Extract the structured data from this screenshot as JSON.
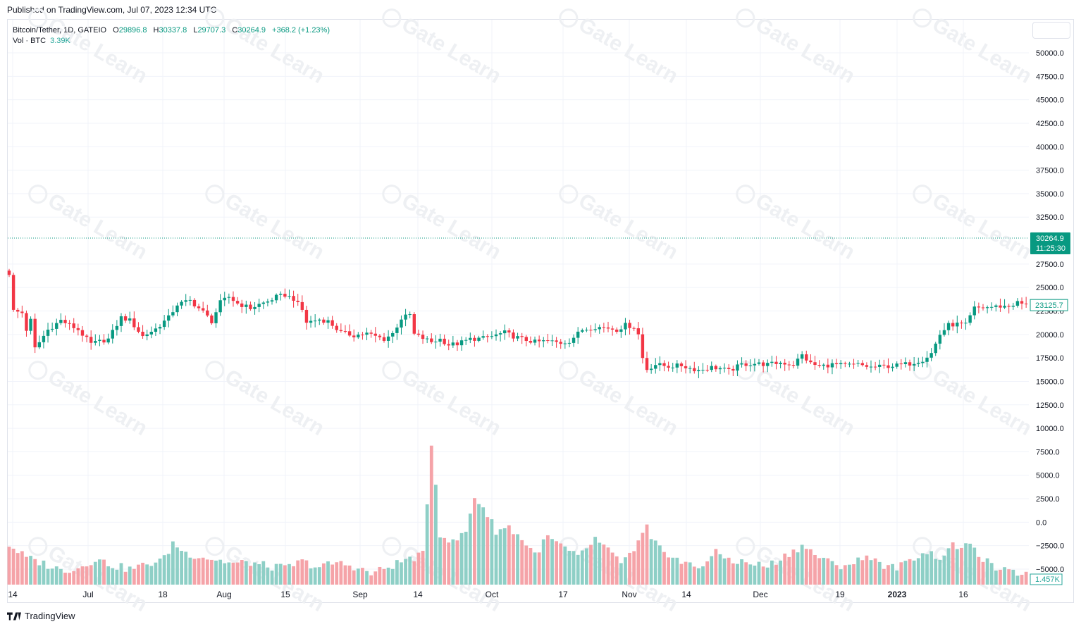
{
  "published": "Published on TradingView.com, Jul 07, 2023 12:34 UTC",
  "legend": {
    "symbol": "Bitcoin/Tether, 1D, GATEIO",
    "open_label": "O",
    "open": "29896.8",
    "high_label": "H",
    "high": "30337.8",
    "low_label": "L",
    "low": "29707.3",
    "close_label": "C",
    "close": "30264.9",
    "change": "+368.2 (+1.23%)"
  },
  "volume_legend": {
    "label": "Vol · BTC",
    "value": "3.39K"
  },
  "footer": {
    "brand": "TradingView"
  },
  "watermark": "Gate Learn",
  "colors": {
    "up": "#089981",
    "down": "#f23645",
    "vol_up": "#8ecfc6",
    "vol_down": "#f5a3a8",
    "grid": "#f0f3fa",
    "current_price": "#089981"
  },
  "chart_data": {
    "type": "candlestick",
    "y_axis_ticks": [
      "50000.0",
      "47500.0",
      "45000.0",
      "42500.0",
      "40000.0",
      "37500.0",
      "35000.0",
      "32500.0",
      "27500.0",
      "25000.0",
      "22500.0",
      "20000.0",
      "17500.0",
      "15000.0",
      "12500.0",
      "10000.0",
      "7500.0",
      "5000.0",
      "2500.0",
      "0.0",
      "−2500.0",
      "−5000.0"
    ],
    "x_axis_labels": [
      "14",
      "Jul",
      "18",
      "Aug",
      "15",
      "Sep",
      "14",
      "Oct",
      "17",
      "Nov",
      "14",
      "Dec",
      "19",
      "2023",
      "16"
    ],
    "current_price_label": "30264.9",
    "countdown_label": "11:25:30",
    "last_close_label": "23125.7",
    "volume_label": "1.457K",
    "ylim": [
      -5000,
      52000
    ],
    "close_path": [
      [
        0,
        26500
      ],
      [
        1,
        22500
      ],
      [
        3,
        22300
      ],
      [
        4,
        20500
      ],
      [
        5,
        21500
      ],
      [
        6,
        18500
      ],
      [
        9,
        20500
      ],
      [
        12,
        21500
      ],
      [
        16,
        20500
      ],
      [
        19,
        19000
      ],
      [
        23,
        19500
      ],
      [
        26,
        21800
      ],
      [
        28,
        21500
      ],
      [
        31,
        19800
      ],
      [
        34,
        20600
      ],
      [
        37,
        21800
      ],
      [
        39,
        23200
      ],
      [
        42,
        23600
      ],
      [
        45,
        22400
      ],
      [
        47,
        21400
      ],
      [
        49,
        23400
      ],
      [
        51,
        24000
      ],
      [
        53,
        23300
      ],
      [
        56,
        22800
      ],
      [
        58,
        23200
      ],
      [
        60,
        23500
      ],
      [
        62,
        24000
      ],
      [
        64,
        24200
      ],
      [
        66,
        23800
      ],
      [
        68,
        22600
      ],
      [
        69,
        21300
      ],
      [
        72,
        21600
      ],
      [
        74,
        21400
      ],
      [
        77,
        20200
      ],
      [
        80,
        19900
      ],
      [
        83,
        20100
      ],
      [
        85,
        19800
      ],
      [
        87,
        19500
      ],
      [
        89,
        20100
      ],
      [
        91,
        21700
      ],
      [
        93,
        22100
      ],
      [
        94,
        20000
      ],
      [
        96,
        19600
      ],
      [
        98,
        19200
      ],
      [
        100,
        19500
      ],
      [
        102,
        18900
      ],
      [
        104,
        19000
      ],
      [
        107,
        19500
      ],
      [
        110,
        19600
      ],
      [
        112,
        19800
      ],
      [
        115,
        20200
      ],
      [
        117,
        19800
      ],
      [
        120,
        19400
      ],
      [
        122,
        19200
      ],
      [
        125,
        19300
      ],
      [
        128,
        19100
      ],
      [
        130,
        19300
      ],
      [
        133,
        20500
      ],
      [
        136,
        20800
      ],
      [
        139,
        20700
      ],
      [
        141,
        20500
      ],
      [
        143,
        21000
      ],
      [
        145,
        20800
      ],
      [
        146,
        20000
      ],
      [
        147,
        17500
      ],
      [
        148,
        16300
      ],
      [
        150,
        16800
      ],
      [
        153,
        16600
      ],
      [
        156,
        16700
      ],
      [
        158,
        16400
      ],
      [
        160,
        16200
      ],
      [
        163,
        16500
      ],
      [
        165,
        16400
      ],
      [
        167,
        16100
      ],
      [
        170,
        16800
      ],
      [
        173,
        16900
      ],
      [
        176,
        16800
      ],
      [
        179,
        17000
      ],
      [
        182,
        16800
      ],
      [
        184,
        17800
      ],
      [
        186,
        16900
      ],
      [
        188,
        16600
      ],
      [
        191,
        16800
      ],
      [
        194,
        16700
      ],
      [
        197,
        16800
      ],
      [
        200,
        16500
      ],
      [
        203,
        16600
      ],
      [
        206,
        16700
      ],
      [
        209,
        16900
      ],
      [
        212,
        17300
      ],
      [
        214,
        18000
      ],
      [
        216,
        20000
      ],
      [
        218,
        21000
      ],
      [
        220,
        21100
      ],
      [
        222,
        21000
      ],
      [
        224,
        22800
      ],
      [
        227,
        22900
      ],
      [
        230,
        23000
      ],
      [
        232,
        23000
      ],
      [
        234,
        23400
      ],
      [
        236,
        23126
      ]
    ],
    "volume_path": [
      [
        0,
        -2400
      ],
      [
        4,
        -3800
      ],
      [
        8,
        -4400
      ],
      [
        12,
        -5100
      ],
      [
        16,
        -4900
      ],
      [
        20,
        -3900
      ],
      [
        24,
        -4600
      ],
      [
        28,
        -5000
      ],
      [
        32,
        -4500
      ],
      [
        36,
        -3900
      ],
      [
        38,
        -2200
      ],
      [
        41,
        -3300
      ],
      [
        44,
        -3600
      ],
      [
        48,
        -4000
      ],
      [
        52,
        -4400
      ],
      [
        56,
        -4300
      ],
      [
        60,
        -4700
      ],
      [
        64,
        -4900
      ],
      [
        68,
        -4200
      ],
      [
        72,
        -4800
      ],
      [
        76,
        -4300
      ],
      [
        80,
        -4700
      ],
      [
        84,
        -5500
      ],
      [
        88,
        -4800
      ],
      [
        92,
        -4000
      ],
      [
        96,
        -3500
      ],
      [
        97,
        1800
      ],
      [
        98,
        8500
      ],
      [
        99,
        4000
      ],
      [
        100,
        -1200
      ],
      [
        103,
        -2200
      ],
      [
        106,
        -1000
      ],
      [
        108,
        2700
      ],
      [
        110,
        1600
      ],
      [
        113,
        -900
      ],
      [
        116,
        -500
      ],
      [
        119,
        -1800
      ],
      [
        122,
        -3400
      ],
      [
        125,
        -1600
      ],
      [
        128,
        -2500
      ],
      [
        132,
        -3800
      ],
      [
        136,
        -1800
      ],
      [
        139,
        -3100
      ],
      [
        142,
        -4200
      ],
      [
        145,
        -3200
      ],
      [
        148,
        -500
      ],
      [
        149,
        -2100
      ],
      [
        152,
        -3000
      ],
      [
        156,
        -4300
      ],
      [
        160,
        -4800
      ],
      [
        164,
        -3300
      ],
      [
        168,
        -4100
      ],
      [
        172,
        -4400
      ],
      [
        176,
        -4700
      ],
      [
        180,
        -3600
      ],
      [
        184,
        -2500
      ],
      [
        188,
        -3700
      ],
      [
        192,
        -4700
      ],
      [
        196,
        -4300
      ],
      [
        200,
        -3600
      ],
      [
        204,
        -4900
      ],
      [
        208,
        -4500
      ],
      [
        212,
        -3100
      ],
      [
        216,
        -3700
      ],
      [
        219,
        -2600
      ],
      [
        222,
        -2400
      ],
      [
        225,
        -3400
      ],
      [
        228,
        -4700
      ],
      [
        232,
        -5400
      ],
      [
        236,
        -5400
      ]
    ]
  }
}
